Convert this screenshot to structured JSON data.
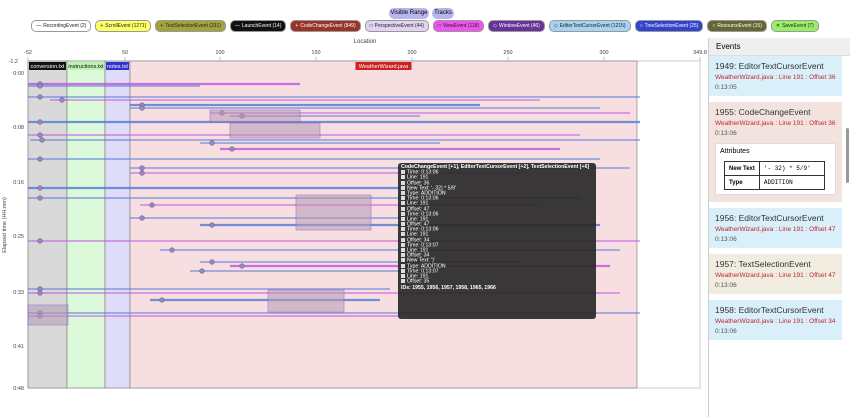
{
  "toolbar": {
    "buttons": [
      "Visible Range",
      "Tracks"
    ]
  },
  "legend": [
    {
      "marker": "—",
      "label": "RecordingEvent (2)",
      "color": "#ffffff"
    },
    {
      "marker": "+",
      "label": "ScrollEvent (1271)",
      "color": "#ffff66"
    },
    {
      "marker": "+",
      "label": "TextSelectionEvent (231)",
      "color": "#a3a33d"
    },
    {
      "marker": "—",
      "label": "LaunchEvent (14)",
      "color": "#111111"
    },
    {
      "marker": "+",
      "label": "CodeChangeEvent (849)",
      "color": "#99332a"
    },
    {
      "marker": "□",
      "label": "PerspectiveEvent (44)",
      "color": "#e3d3f2"
    },
    {
      "marker": "□",
      "label": "ViewEvent (118)",
      "color": "#ee55ee"
    },
    {
      "marker": "◇",
      "label": "WindowEvent (46)",
      "color": "#663399"
    },
    {
      "marker": "◇",
      "label": "EditorTextCursorEvent (1215)",
      "color": "#a5d3f0"
    },
    {
      "marker": "○",
      "label": "TreeSelectionEvent (25)",
      "color": "#3344cc"
    },
    {
      "marker": "○",
      "label": "ResourceEvent (15)",
      "color": "#666633"
    },
    {
      "marker": "✕",
      "label": "SaveEvent (7)",
      "color": "#99ee66"
    }
  ],
  "plot": {
    "x_label": "Location",
    "corner": "-1.2",
    "x_ticks": [
      "-52",
      "50",
      "100",
      "150",
      "200",
      "250",
      "300",
      "349.8"
    ],
    "y_label": "Elapsed time (HH:mm)",
    "y_ticks": [
      "0:00",
      "0:08",
      "0:16",
      "0:25",
      "0:33",
      "0:41",
      "0:48"
    ],
    "files": [
      "conversion.txt",
      "instructions.txt",
      "notes.txt",
      "WeatherWizard.java"
    ]
  },
  "tooltip": {
    "title": "CodeChangeEvent [+1], EditorTextCursorEvent [+2], TextSelectionEvent [+6]",
    "lines": [
      "Time: 0:13:06",
      "Line: 191",
      "Offset: 36",
      "New Text: '- 32) * 5/9'",
      "Type: ADDITION",
      "Time: 0:13:06",
      "Line: 191",
      "Offset: 47",
      "Time: 0:13:06",
      "Line: 191",
      "Offset: 47",
      "Time: 0:13:06",
      "Line: 191",
      "Offset: 34",
      "Time: 0:13:07",
      "Line: 191",
      "Offset: 34",
      "New Text: ')'",
      "Type: ADDITION",
      "Time: 0:13:07",
      "Line: 191",
      "Offset: 35"
    ],
    "ids": "IDs: 1955, 1956, 1957, 1958, 1965, 1966"
  },
  "events_panel": {
    "title": "Events",
    "cards": [
      {
        "title": "1949: EditorTextCursorEvent",
        "location": "WeatherWizard.java : Line 191 : Offset 36",
        "time": "0:13:05",
        "color": "#d9eff9"
      },
      {
        "title": "1955: CodeChangeEvent",
        "location": "WeatherWizard.java : Line 191 : Offset 36",
        "time": "0:13:06",
        "color": "#f2e3df",
        "attributes": {
          "heading": "Attributes",
          "rows": [
            [
              "New Text",
              "'- 32) * 5/9'"
            ],
            [
              "Type",
              "ADDITION"
            ]
          ]
        }
      },
      {
        "title": "1956: EditorTextCursorEvent",
        "location": "WeatherWizard.java : Line 191 : Offset 47",
        "time": "0:13:06",
        "color": "#d9eff9"
      },
      {
        "title": "1957: TextSelectionEvent",
        "location": "WeatherWizard.java : Line 191 : Offset 47",
        "time": "0:13:06",
        "color": "#f0ece0"
      },
      {
        "title": "1958: EditorTextCursorEvent",
        "location": "WeatherWizard.java : Line 191 : Offset 34",
        "time": "0:13:06",
        "color": "#d9eff9"
      }
    ]
  }
}
